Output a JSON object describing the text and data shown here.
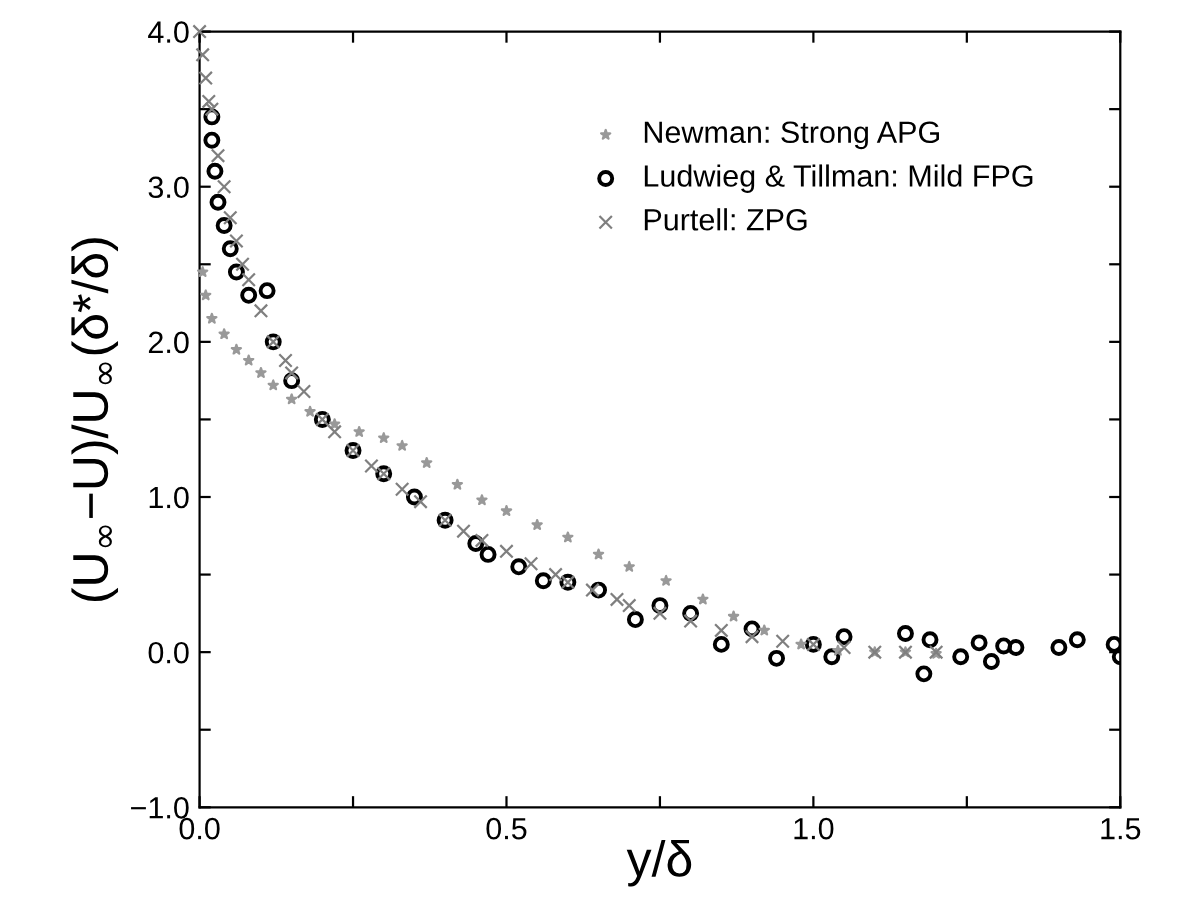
{
  "chart_data": {
    "type": "scatter",
    "xlabel": "y/δ",
    "ylabel": "(U$_{∞}$−U)/U$_{∞}$(δ*/δ)",
    "xlim": [
      0,
      1.5
    ],
    "ylim": [
      -1,
      4
    ],
    "xticks": [
      {
        "value": 0,
        "label": "0.0"
      },
      {
        "value": 0.25,
        "label": null
      },
      {
        "value": 0.5,
        "label": "0.5"
      },
      {
        "value": 0.75,
        "label": null
      },
      {
        "value": 1.0,
        "label": "1.0"
      },
      {
        "value": 1.25,
        "label": null
      },
      {
        "value": 1.5,
        "label": "1.5"
      }
    ],
    "yticks": [
      {
        "value": -1,
        "label": "−1.0"
      },
      {
        "value": -0.5,
        "label": null
      },
      {
        "value": 0,
        "label": "0.0"
      },
      {
        "value": 0.5,
        "label": null
      },
      {
        "value": 1,
        "label": "1.0"
      },
      {
        "value": 1.5,
        "label": null
      },
      {
        "value": 2,
        "label": "2.0"
      },
      {
        "value": 2.5,
        "label": null
      },
      {
        "value": 3,
        "label": "3.0"
      },
      {
        "value": 3.5,
        "label": null
      },
      {
        "value": 4,
        "label": "4.0"
      }
    ],
    "grid": false,
    "legend": "top right",
    "series": [
      {
        "name": "Newman: Strong APG",
        "color": "#999999",
        "marker": "star",
        "x": [
          0.005,
          0.01,
          0.02,
          0.04,
          0.06,
          0.08,
          0.1,
          0.12,
          0.15,
          0.18,
          0.22,
          0.26,
          0.3,
          0.33,
          0.37,
          0.42,
          0.46,
          0.5,
          0.55,
          0.6,
          0.65,
          0.7,
          0.76,
          0.82,
          0.87,
          0.92,
          0.98,
          1.04,
          1.1,
          1.15,
          1.2
        ],
        "values": [
          2.45,
          2.3,
          2.15,
          2.05,
          1.95,
          1.88,
          1.8,
          1.72,
          1.63,
          1.55,
          1.47,
          1.42,
          1.38,
          1.33,
          1.22,
          1.08,
          0.98,
          0.91,
          0.82,
          0.74,
          0.63,
          0.55,
          0.46,
          0.34,
          0.23,
          0.14,
          0.05,
          0.01,
          0.0,
          0.0,
          -0.01
        ]
      },
      {
        "name": "Ludwieg & Tillman: Mild FPG",
        "color": "#000000",
        "marker": "circle",
        "x": [
          0.02,
          0.02,
          0.025,
          0.03,
          0.04,
          0.05,
          0.06,
          0.08,
          0.11,
          0.12,
          0.15,
          0.2,
          0.25,
          0.3,
          0.35,
          0.4,
          0.45,
          0.47,
          0.52,
          0.56,
          0.6,
          0.65,
          0.71,
          0.75,
          0.8,
          0.85,
          0.9,
          0.94,
          1.0,
          1.03,
          1.05,
          1.15,
          1.18,
          1.19,
          1.24,
          1.27,
          1.29,
          1.31,
          1.33,
          1.4,
          1.43,
          1.49,
          1.5
        ],
        "values": [
          3.45,
          3.3,
          3.1,
          2.9,
          2.75,
          2.6,
          2.45,
          2.3,
          2.33,
          2.0,
          1.75,
          1.5,
          1.3,
          1.15,
          1.0,
          0.85,
          0.7,
          0.63,
          0.55,
          0.46,
          0.45,
          0.4,
          0.21,
          0.3,
          0.25,
          0.05,
          0.15,
          -0.04,
          0.05,
          -0.03,
          0.1,
          0.12,
          -0.14,
          0.08,
          -0.03,
          0.06,
          -0.06,
          0.04,
          0.03,
          0.03,
          0.08,
          0.05,
          -0.03
        ]
      },
      {
        "name": "Purtell: ZPG",
        "color": "#7f7f7f",
        "marker": "cross",
        "x": [
          0.0,
          0.005,
          0.01,
          0.015,
          0.02,
          0.03,
          0.04,
          0.05,
          0.06,
          0.07,
          0.08,
          0.1,
          0.12,
          0.14,
          0.15,
          0.17,
          0.2,
          0.22,
          0.25,
          0.28,
          0.3,
          0.33,
          0.36,
          0.4,
          0.43,
          0.46,
          0.5,
          0.54,
          0.58,
          0.6,
          0.64,
          0.68,
          0.7,
          0.75,
          0.8,
          0.85,
          0.9,
          0.95,
          1.0,
          1.05,
          1.1,
          1.15,
          1.2
        ],
        "values": [
          4.0,
          3.85,
          3.7,
          3.55,
          3.5,
          3.2,
          3.0,
          2.8,
          2.65,
          2.5,
          2.4,
          2.2,
          2.0,
          1.88,
          1.8,
          1.68,
          1.5,
          1.42,
          1.3,
          1.2,
          1.15,
          1.05,
          0.97,
          0.85,
          0.78,
          0.72,
          0.65,
          0.57,
          0.5,
          0.45,
          0.4,
          0.34,
          0.3,
          0.25,
          0.2,
          0.14,
          0.1,
          0.07,
          0.05,
          0.03,
          0.0,
          0.0,
          0.0
        ]
      }
    ]
  }
}
